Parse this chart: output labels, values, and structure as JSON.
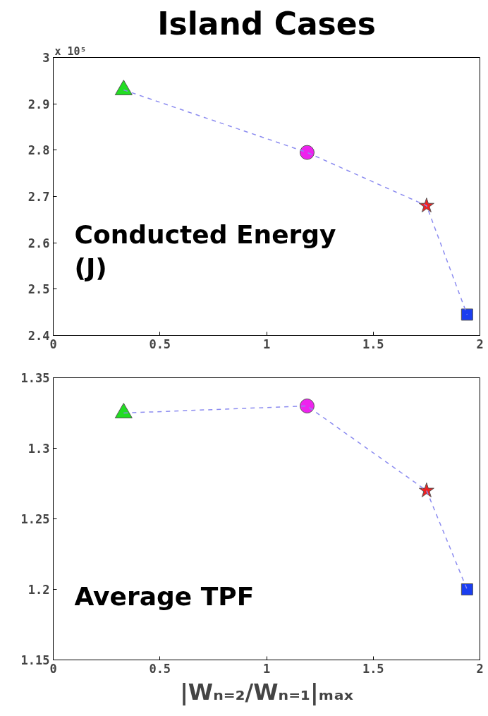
{
  "chart_data": [
    {
      "type": "line",
      "title": "Island Cases",
      "xlim": [
        0,
        2
      ],
      "xticks": [
        0,
        0.5,
        1,
        1.5,
        2
      ],
      "ylim": [
        2.4,
        3
      ],
      "yticks": [
        2.4,
        2.5,
        2.6,
        2.7,
        2.8,
        2.9,
        3
      ],
      "annotations": [
        "x 10⁵",
        "Conducted Energy\n(J)"
      ],
      "series": [
        {
          "x": [
            0.33,
            1.19,
            1.75,
            1.94
          ],
          "values": [
            2.93,
            2.795,
            2.68,
            2.445
          ],
          "color": "#8c8cf0",
          "line_style": "dashed",
          "marker": "none"
        },
        {
          "type": "scatter",
          "x": [
            0.33
          ],
          "values": [
            2.93
          ],
          "color": "#22dd22",
          "marker": "triangle"
        },
        {
          "type": "scatter",
          "x": [
            1.19
          ],
          "values": [
            2.795
          ],
          "color": "#ee22ee",
          "marker": "circle"
        },
        {
          "type": "scatter",
          "x": [
            1.75
          ],
          "values": [
            2.68
          ],
          "color": "#ee2222",
          "marker": "star"
        },
        {
          "type": "scatter",
          "x": [
            1.94
          ],
          "values": [
            2.445
          ],
          "color": "#1a3ef0",
          "marker": "square"
        }
      ]
    },
    {
      "type": "line",
      "xlabel": "|Wₙ₌₂/Wₙ₌₁|ₘₐₓ",
      "xlim": [
        0,
        2
      ],
      "xticks": [
        0,
        0.5,
        1,
        1.5,
        2
      ],
      "ylim": [
        1.15,
        1.35
      ],
      "yticks": [
        1.15,
        1.2,
        1.25,
        1.3,
        1.35
      ],
      "annotations": [
        "Average TPF"
      ],
      "series": [
        {
          "x": [
            0.33,
            1.19,
            1.75,
            1.94
          ],
          "values": [
            1.325,
            1.33,
            1.27,
            1.2
          ],
          "color": "#8c8cf0",
          "line_style": "dashed",
          "marker": "none"
        },
        {
          "type": "scatter",
          "x": [
            0.33
          ],
          "values": [
            1.325
          ],
          "color": "#22dd22",
          "marker": "triangle"
        },
        {
          "type": "scatter",
          "x": [
            1.19
          ],
          "values": [
            1.33
          ],
          "color": "#ee22ee",
          "marker": "circle"
        },
        {
          "type": "scatter",
          "x": [
            1.75
          ],
          "values": [
            1.27
          ],
          "color": "#ee2222",
          "marker": "star"
        },
        {
          "type": "scatter",
          "x": [
            1.94
          ],
          "values": [
            1.2
          ],
          "color": "#1a3ef0",
          "marker": "square"
        }
      ]
    }
  ]
}
